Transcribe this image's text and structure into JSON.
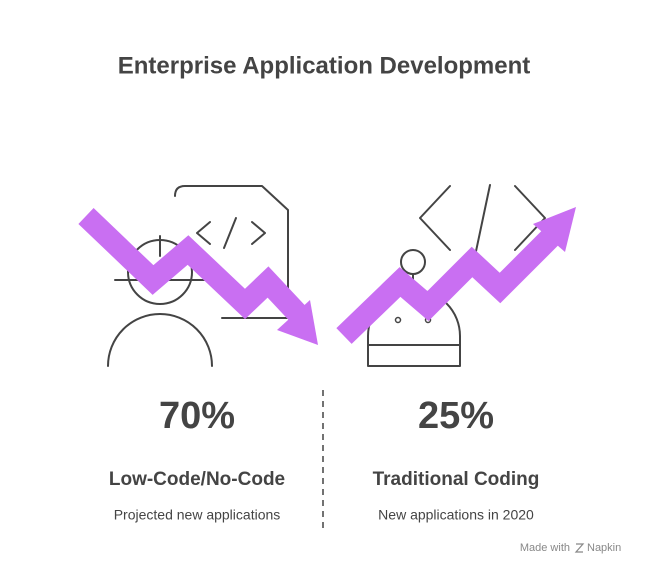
{
  "header": {
    "title": "Enterprise Application Development"
  },
  "stats": [
    {
      "value": "70%",
      "label": "Low-Code/No-Code",
      "description": "Projected new applications"
    },
    {
      "value": "25%",
      "label": "Traditional Coding",
      "description": "New applications in 2020"
    }
  ],
  "footer": {
    "text": "Made with",
    "brand": "Napkin"
  }
}
